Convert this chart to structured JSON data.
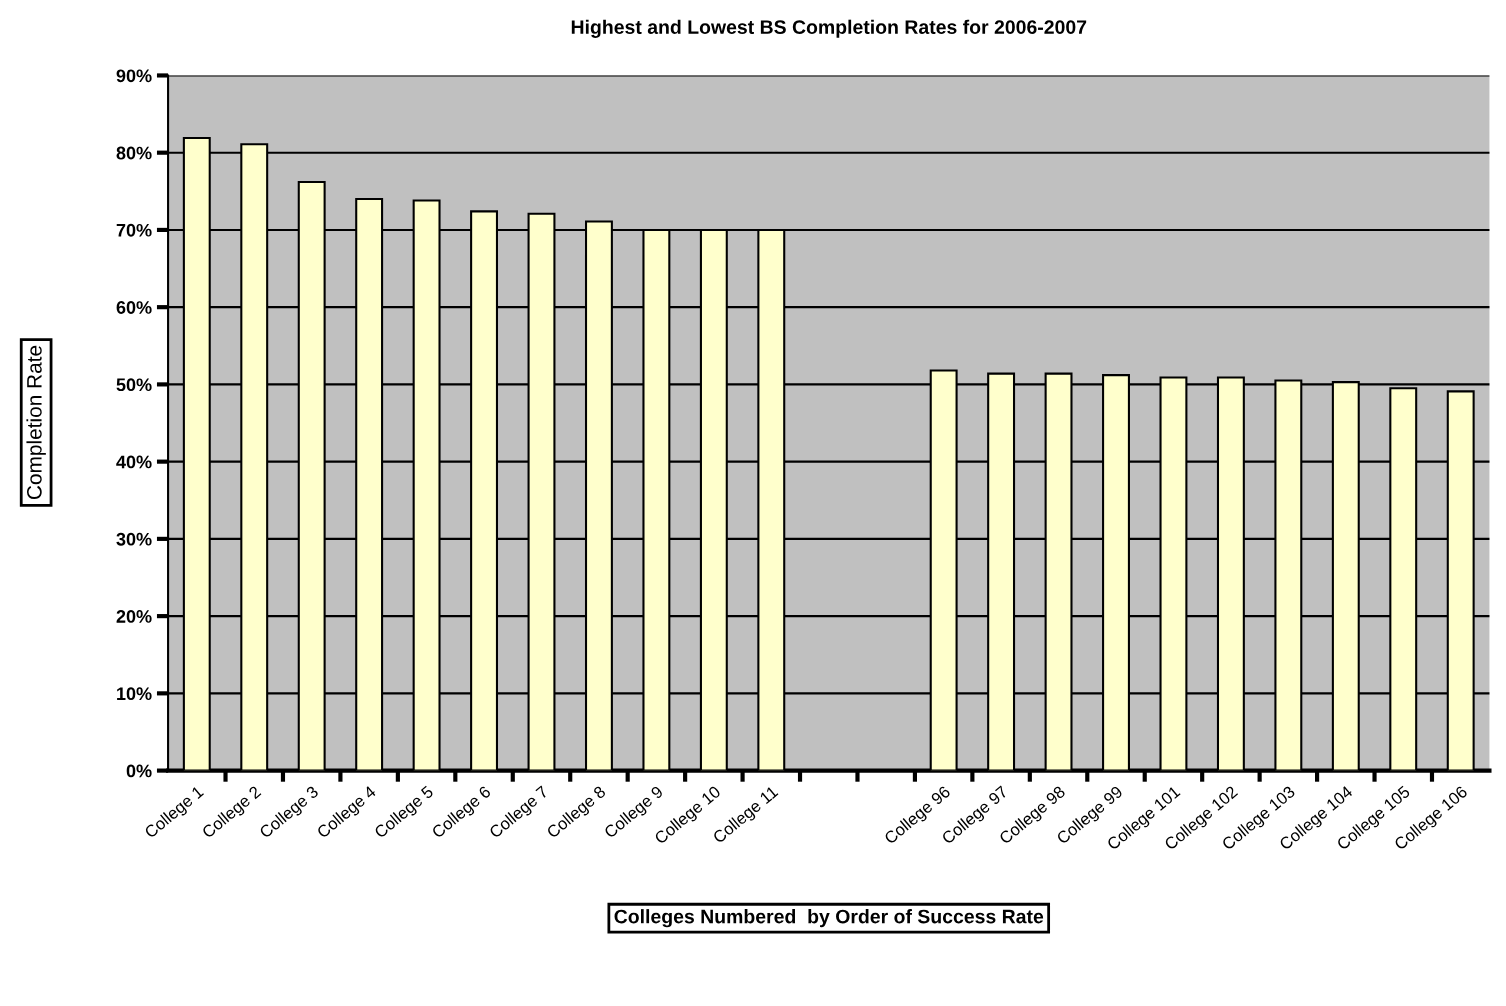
{
  "chart_data": {
    "type": "bar",
    "title": "Highest and Lowest BS Completion Rates for 2006-2007",
    "xlabel": "Colleges Numbered  by Order of Success Rate",
    "ylabel": "Completion Rate",
    "categories": [
      "College 1",
      "College 2",
      "College 3",
      "College 4",
      "College 5",
      "College 6",
      "College 7",
      "College 8",
      "College 9",
      "College 10",
      "College 11",
      null,
      null,
      "College 96",
      "College 97",
      "College 98",
      "College 99",
      "College 101",
      "College 102",
      "College 103",
      "College 104",
      "College 105",
      "College 106"
    ],
    "values": [
      81.9,
      81.1,
      76.2,
      74.0,
      73.8,
      72.4,
      72.1,
      71.1,
      70,
      70,
      70,
      null,
      null,
      51.8,
      51.4,
      51.4,
      51.2,
      50.9,
      50.9,
      50.5,
      50.3,
      49.5,
      49.1
    ],
    "color": "#ffffcc",
    "ylim": [
      0,
      90
    ],
    "yticks": [
      {
        "value": 0,
        "label": "0%"
      },
      {
        "value": 10,
        "label": "10%"
      },
      {
        "value": 20,
        "label": "20%"
      },
      {
        "value": 30,
        "label": "30%"
      },
      {
        "value": 40,
        "label": "40%"
      },
      {
        "value": 50,
        "label": "50%"
      },
      {
        "value": 60,
        "label": "60%"
      },
      {
        "value": 70,
        "label": "70%"
      },
      {
        "value": 80,
        "label": "80%"
      },
      {
        "value": 90,
        "label": "90%"
      }
    ],
    "grid": "y",
    "legend": false
  }
}
